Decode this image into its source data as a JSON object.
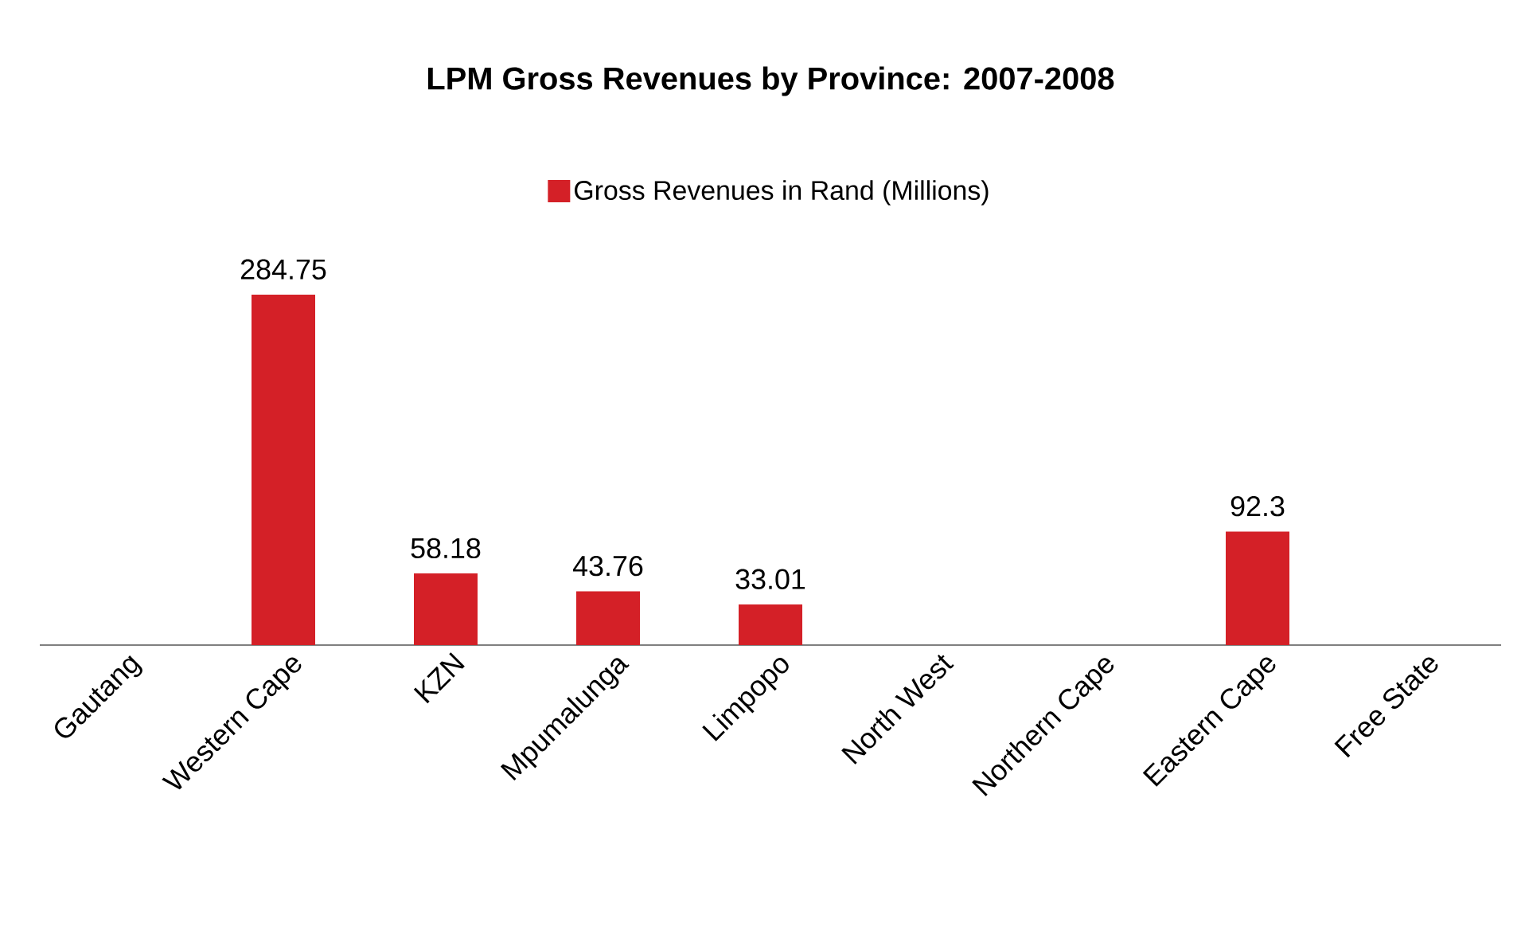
{
  "chart_data": {
    "type": "bar",
    "title": "LPM Gross Revenues by Province:  2007-2008",
    "categories": [
      "Gautang",
      "Western Cape",
      "KZN",
      "Mpumalunga",
      "Limpopo",
      "North West",
      "Northern Cape",
      "Eastern Cape",
      "Free State"
    ],
    "series": [
      {
        "name": "Gross Revenues in Rand (Millions)",
        "color": "#d42027",
        "values": [
          null,
          284.75,
          58.18,
          43.76,
          33.01,
          null,
          null,
          92.3,
          null
        ]
      }
    ],
    "tick_labels": "x",
    "data_labels": true,
    "legend": "top"
  }
}
